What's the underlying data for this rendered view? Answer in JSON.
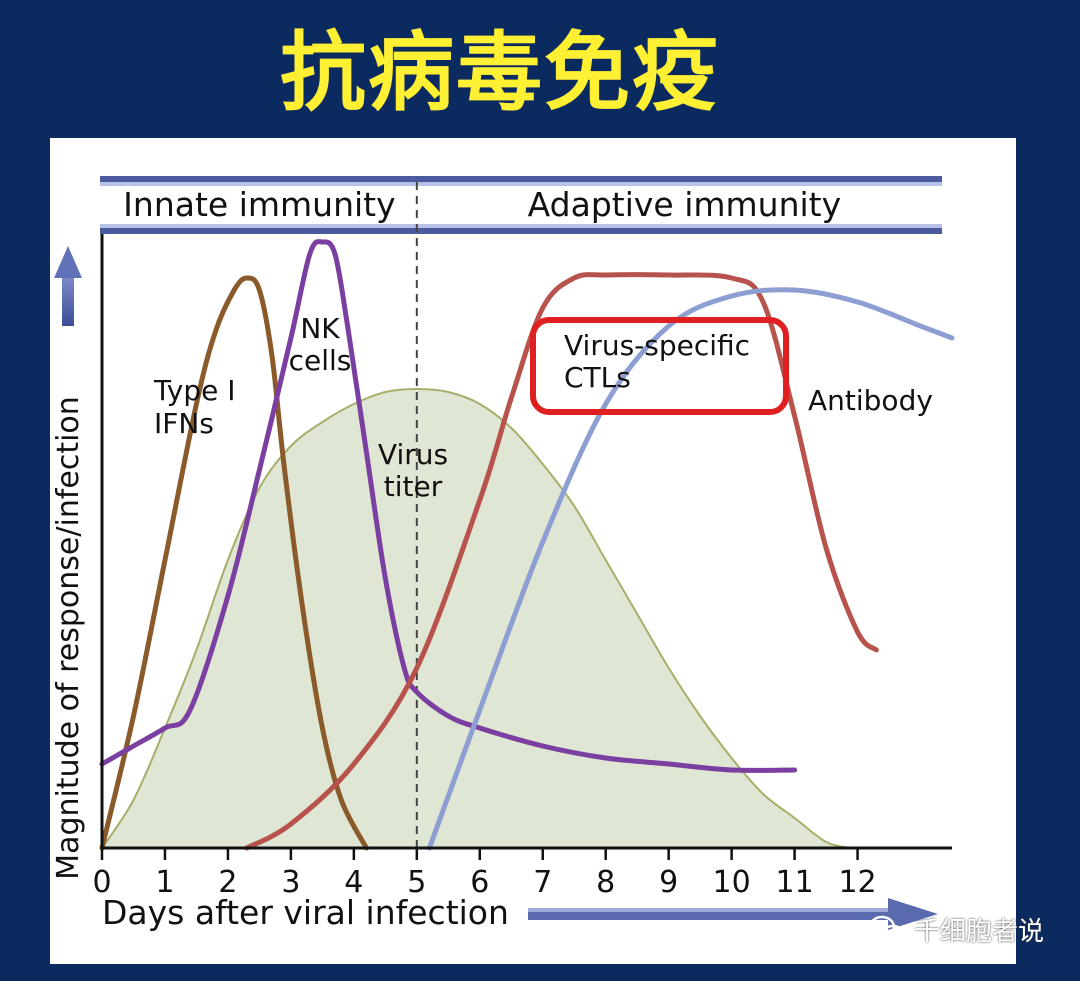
{
  "slide": {
    "title": "抗病毒免疫",
    "watermark": "千细胞者说"
  },
  "chart_data": {
    "type": "line",
    "title": "",
    "xlabel": "Days after viral infection",
    "ylabel": "Magnitude of response/infection",
    "xlim": [
      0,
      13.5
    ],
    "ylim": [
      0,
      100
    ],
    "x_ticks": [
      0,
      1,
      2,
      3,
      4,
      5,
      6,
      7,
      8,
      9,
      10,
      11,
      12
    ],
    "phases": [
      {
        "label": "Innate immunity",
        "from": 0,
        "to": 5
      },
      {
        "label": "Adaptive immunity",
        "from": 5,
        "to": 13.5
      }
    ],
    "divider_x": 5,
    "highlight": {
      "series": "Virus-specific CTLs",
      "color": "#e02020"
    },
    "series": [
      {
        "name": "Virus titer",
        "color": "#a8ad6a",
        "fill": "#dfe6d3",
        "kind": "area",
        "x": [
          0,
          0.5,
          1,
          1.5,
          2,
          2.5,
          3,
          3.5,
          4,
          4.5,
          5,
          5.5,
          6,
          6.5,
          7,
          7.5,
          8,
          8.5,
          9,
          9.5,
          10,
          10.5,
          11,
          11.5,
          11.9
        ],
        "y": [
          0,
          8,
          20,
          33,
          48,
          60,
          67,
          71,
          74,
          76,
          76.5,
          76,
          74,
          70,
          64,
          57,
          48,
          39,
          30,
          22,
          15,
          9,
          5,
          1,
          0
        ]
      },
      {
        "name": "Type I IFNs",
        "color": "#8a5a2a",
        "kind": "line",
        "x": [
          0,
          0.5,
          1,
          1.5,
          1.8,
          2.1,
          2.3,
          2.5,
          2.7,
          2.9,
          3.2,
          3.5,
          3.8,
          4.2
        ],
        "y": [
          0,
          22,
          48,
          74,
          86,
          93,
          95,
          93,
          82,
          63,
          39,
          20,
          8,
          0
        ]
      },
      {
        "name": "NK cells",
        "color": "#7a3fa0",
        "kind": "line",
        "x": [
          0,
          0.5,
          1,
          1.4,
          2,
          2.5,
          3,
          3.3,
          3.5,
          3.7,
          3.9,
          4.2,
          4.5,
          4.8,
          5,
          5.5,
          6,
          7,
          8,
          9,
          10,
          11
        ],
        "y": [
          14,
          17,
          20,
          23,
          42,
          63,
          85,
          99,
          101,
          99,
          87,
          66,
          45,
          30,
          26,
          22,
          20,
          17,
          15,
          14,
          13,
          13
        ]
      },
      {
        "name": "Virus-specific CTLs",
        "color": "#b7524d",
        "kind": "line",
        "x": [
          2.3,
          3,
          4,
          5,
          6,
          6.5,
          7,
          7.5,
          8,
          9,
          10,
          10.5,
          11,
          11.5,
          12,
          12.3
        ],
        "y": [
          0,
          4,
          14,
          30,
          58,
          75,
          90,
          95,
          95.5,
          95.5,
          95,
          91,
          72,
          50,
          36,
          33
        ]
      },
      {
        "name": "Antibody",
        "color": "#8d9ed2",
        "kind": "line",
        "x": [
          5.2,
          6,
          7,
          8,
          9,
          10,
          11,
          12,
          13,
          13.5
        ],
        "y": [
          0,
          23,
          51,
          74,
          87,
          92,
          93,
          91,
          87,
          85
        ]
      }
    ]
  }
}
